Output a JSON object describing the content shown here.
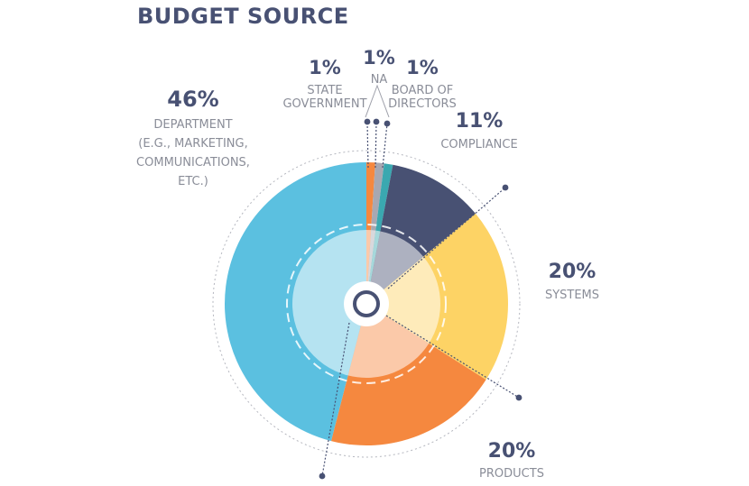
{
  "title": "BUDGET SOURCE",
  "colors": {
    "department": "#5bc0e0",
    "state_government": "#f5883f",
    "na": "#a8a8b2",
    "board_of_directors": "#3aa8b0",
    "compliance": "#485173",
    "systems": "#fdd365",
    "products": "#f5883f",
    "text_dark": "#485173",
    "text_label": "#8a8d98"
  },
  "chart_data": {
    "type": "pie",
    "title": "BUDGET SOURCE",
    "slices": [
      {
        "key": "state",
        "value": 1,
        "pct_label": "1%",
        "label_lines": [
          "STATE",
          "GOVERNMENT"
        ],
        "color": "#f5883f"
      },
      {
        "key": "na",
        "value": 1,
        "pct_label": "1%",
        "label_lines": [
          "NA"
        ],
        "color": "#a8a8b2"
      },
      {
        "key": "board",
        "value": 1,
        "pct_label": "1%",
        "label_lines": [
          "BOARD OF",
          "DIRECTORS"
        ],
        "color": "#3aa8b0"
      },
      {
        "key": "compliance",
        "value": 11,
        "pct_label": "11%",
        "label_lines": [
          "COMPLIANCE"
        ],
        "color": "#485173"
      },
      {
        "key": "systems",
        "value": 20,
        "pct_label": "20%",
        "label_lines": [
          "SYSTEMS"
        ],
        "color": "#fdd365"
      },
      {
        "key": "products",
        "value": 20,
        "pct_label": "20%",
        "label_lines": [
          "PRODUCTS"
        ],
        "color": "#f5883f"
      },
      {
        "key": "department",
        "value": 46,
        "pct_label": "46%",
        "label_lines": [
          "DEPARTMENT",
          "(E.G., MARKETING,",
          "COMMUNICATIONS,",
          "ETC.)"
        ],
        "color": "#5bc0e0"
      }
    ]
  }
}
